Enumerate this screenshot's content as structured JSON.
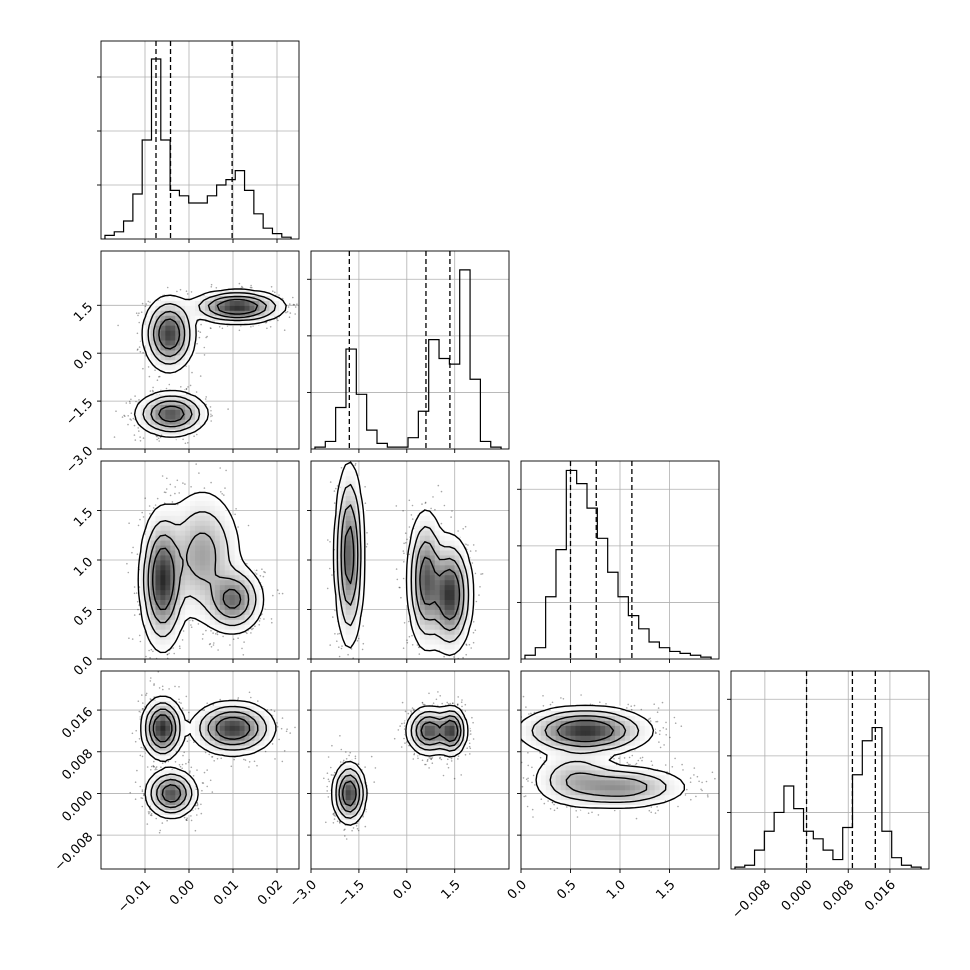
{
  "chart_data": {
    "type": "corner",
    "dimensions": 4,
    "axes": [
      {
        "range": [
          -0.02,
          0.025
        ],
        "ticks": [
          -0.01,
          0.0,
          0.01,
          0.02
        ],
        "tick_labels": [
          "−0.01",
          "0.00",
          "0.01",
          "0.02"
        ]
      },
      {
        "range": [
          -3.0,
          3.2
        ],
        "ticks": [
          -3.0,
          -1.5,
          0.0,
          1.5
        ],
        "tick_labels": [
          "−3.0",
          "−1.5",
          "0.0",
          "1.5"
        ]
      },
      {
        "range": [
          0.0,
          2.0
        ],
        "ticks": [
          0.0,
          0.5,
          1.0,
          1.5
        ],
        "tick_labels": [
          "0.0",
          "0.5",
          "1.0",
          "1.5"
        ]
      },
      {
        "range": [
          -0.0145,
          0.0235
        ],
        "ticks": [
          -0.008,
          0.0,
          0.008,
          0.016
        ],
        "tick_labels": [
          "−0.008",
          "0.000",
          "0.008",
          "0.016"
        ]
      }
    ],
    "histograms": [
      {
        "dim": 0,
        "ymax": 1.1,
        "counts": [
          0.02,
          0.04,
          0.1,
          0.25,
          0.55,
          1.0,
          0.55,
          0.27,
          0.24,
          0.2,
          0.2,
          0.24,
          0.3,
          0.33,
          0.38,
          0.27,
          0.14,
          0.06,
          0.03,
          0.01
        ],
        "quantile_lines": [
          -0.0075,
          -0.0042,
          0.0098
        ]
      },
      {
        "dim": 1,
        "ymax": 1.05,
        "counts": [
          0.01,
          0.04,
          0.22,
          0.53,
          0.29,
          0.1,
          0.03,
          0.01,
          0.01,
          0.06,
          0.2,
          0.58,
          0.48,
          0.45,
          0.95,
          0.37,
          0.04,
          0.01
        ],
        "quantile_lines": [
          -1.8,
          0.6,
          1.35
        ]
      },
      {
        "dim": 2,
        "ymax": 1.05,
        "counts": [
          0.02,
          0.06,
          0.33,
          0.58,
          1.0,
          0.93,
          0.8,
          0.64,
          0.46,
          0.33,
          0.23,
          0.16,
          0.09,
          0.06,
          0.04,
          0.03,
          0.02,
          0.01
        ],
        "quantile_lines": [
          0.5,
          0.76,
          1.12
        ]
      },
      {
        "dim": 3,
        "ymax": 1.05,
        "counts": [
          0.01,
          0.02,
          0.1,
          0.2,
          0.3,
          0.44,
          0.32,
          0.2,
          0.16,
          0.1,
          0.05,
          0.22,
          0.5,
          0.68,
          0.75,
          0.2,
          0.06,
          0.02,
          0.01
        ],
        "quantile_lines": [
          0.0,
          0.0088,
          0.0132
        ]
      }
    ],
    "scatter_panels": [
      {
        "x_dim": 0,
        "y_dim": 1,
        "modes": [
          {
            "cx": -0.0045,
            "cy": 0.6,
            "sx": 0.0025,
            "sy": 0.5,
            "w": 1.0
          },
          {
            "cx": -0.004,
            "cy": -1.9,
            "sx": 0.0035,
            "sy": 0.3,
            "w": 0.9
          },
          {
            "cx": 0.011,
            "cy": 1.45,
            "sx": 0.0045,
            "sy": 0.22,
            "w": 1.1
          }
        ]
      },
      {
        "x_dim": 0,
        "y_dim": 2,
        "modes": [
          {
            "cx": -0.006,
            "cy": 0.8,
            "sx": 0.0022,
            "sy": 0.3,
            "w": 1.3
          },
          {
            "cx": 0.003,
            "cy": 1.05,
            "sx": 0.004,
            "sy": 0.3,
            "w": 0.6
          },
          {
            "cx": 0.01,
            "cy": 0.6,
            "sx": 0.003,
            "sy": 0.15,
            "w": 0.9
          }
        ]
      },
      {
        "x_dim": 1,
        "y_dim": 2,
        "modes": [
          {
            "cx": -1.8,
            "cy": 1.05,
            "sx": 0.2,
            "sy": 0.4,
            "w": 0.8
          },
          {
            "cx": 0.6,
            "cy": 0.8,
            "sx": 0.25,
            "sy": 0.3,
            "w": 0.8
          },
          {
            "cx": 1.35,
            "cy": 0.65,
            "sx": 0.3,
            "sy": 0.25,
            "w": 1.0
          }
        ]
      },
      {
        "x_dim": 0,
        "y_dim": 3,
        "modes": [
          {
            "cx": -0.006,
            "cy": 0.0125,
            "sx": 0.002,
            "sy": 0.0025,
            "w": 1.1
          },
          {
            "cx": -0.004,
            "cy": 0.0,
            "sx": 0.0025,
            "sy": 0.002,
            "w": 0.9
          },
          {
            "cx": 0.01,
            "cy": 0.0125,
            "sx": 0.004,
            "sy": 0.0022,
            "w": 1.0
          }
        ]
      },
      {
        "x_dim": 1,
        "y_dim": 3,
        "modes": [
          {
            "cx": -1.8,
            "cy": 0.0,
            "sx": 0.22,
            "sy": 0.0025,
            "w": 1.0
          },
          {
            "cx": 0.7,
            "cy": 0.012,
            "sx": 0.3,
            "sy": 0.002,
            "w": 0.9
          },
          {
            "cx": 1.4,
            "cy": 0.012,
            "sx": 0.2,
            "sy": 0.002,
            "w": 1.0
          }
        ]
      },
      {
        "x_dim": 2,
        "y_dim": 3,
        "modes": [
          {
            "cx": 0.65,
            "cy": 0.012,
            "sx": 0.28,
            "sy": 0.002,
            "w": 1.3
          },
          {
            "cx": 1.0,
            "cy": 0.0012,
            "sx": 0.3,
            "sy": 0.0018,
            "w": 0.7
          },
          {
            "cx": 0.55,
            "cy": 0.003,
            "sx": 0.2,
            "sy": 0.0025,
            "w": 0.4
          }
        ]
      }
    ],
    "contour_levels": [
      0.6,
      0.35,
      0.16,
      0.05
    ],
    "grid": true,
    "title": "",
    "xlabel": "",
    "ylabel": ""
  }
}
